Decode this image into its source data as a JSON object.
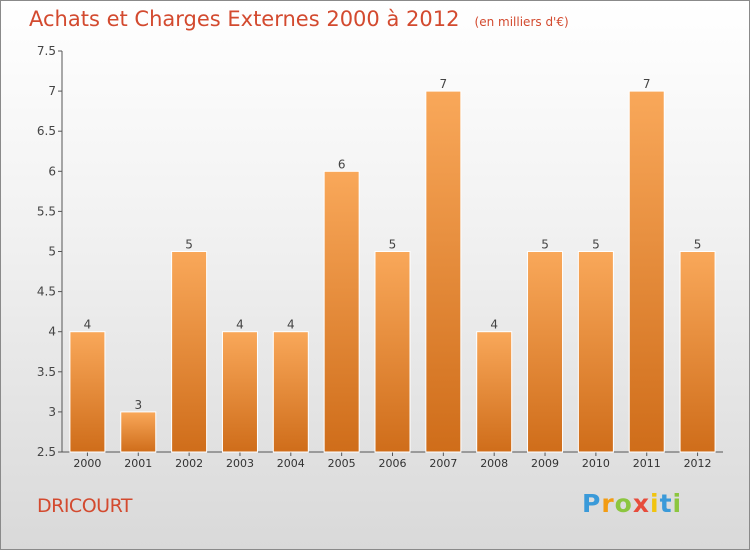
{
  "title": "Achats et Charges Externes 2000 à 2012",
  "unit": "(en milliers d'€)",
  "town": "DRICOURT",
  "logo": {
    "letters": [
      "P",
      "r",
      "o",
      "x",
      "i",
      "t",
      "i"
    ],
    "colors": [
      "#3a9ad9",
      "#f39c12",
      "#8cc63f",
      "#e74c3c",
      "#f1c40f",
      "#3a9ad9",
      "#8cc63f"
    ]
  },
  "colors": {
    "bar_top": "#f9a85a",
    "bar_bottom": "#cf6d1a",
    "title": "#d34a2f"
  },
  "chart_data": {
    "type": "bar",
    "title": "Achats et Charges Externes 2000 à 2012",
    "categories": [
      "2000",
      "2001",
      "2002",
      "2003",
      "2004",
      "2005",
      "2006",
      "2007",
      "2008",
      "2009",
      "2010",
      "2011",
      "2012"
    ],
    "values": [
      4,
      3,
      5,
      4,
      4,
      6,
      5,
      7,
      4,
      5,
      5,
      7,
      5
    ],
    "data_labels": [
      "4",
      "3",
      "5",
      "4",
      "4",
      "6",
      "5",
      "7",
      "4",
      "5",
      "5",
      "7",
      "5"
    ],
    "yticks": [
      "2.5",
      "3",
      "3.5",
      "4",
      "4.5",
      "5",
      "5.5",
      "6",
      "6.5",
      "7",
      "7.5"
    ],
    "ylim": [
      2.5,
      7.5
    ],
    "grid": false,
    "legend": "none"
  }
}
